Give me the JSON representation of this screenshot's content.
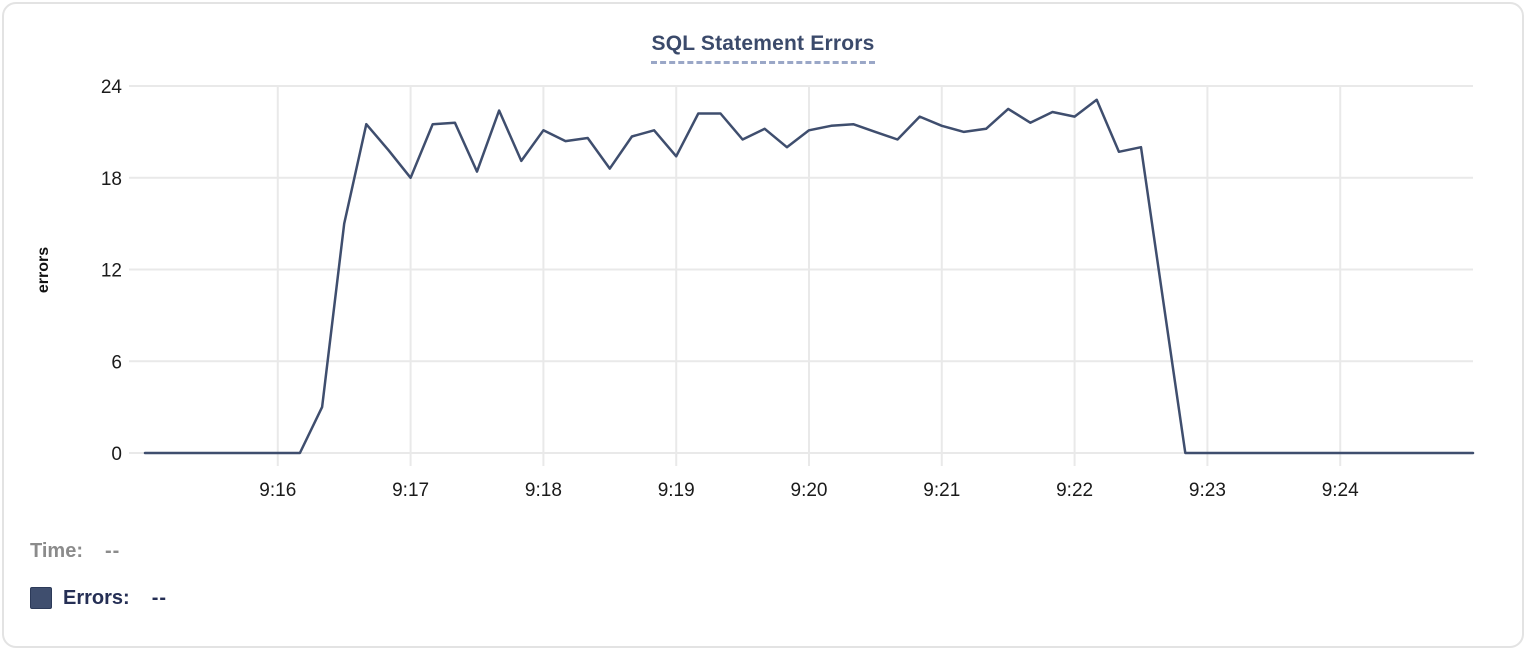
{
  "panel": {
    "background": "#ffffff",
    "border_color": "#e3e3e3"
  },
  "tooltip_readout": {
    "time_label": "Time:",
    "time_value": "--",
    "errors_label": "Errors:",
    "errors_value": "--"
  },
  "colors": {
    "grid": "#e9e9e9",
    "tick_text": "#1b1b1b",
    "axis_label_text": "#111111",
    "title": "#3b4a6b",
    "title_underline": "#9aa7c7",
    "time_readout_text": "#8b8b8b",
    "errors_readout_text": "#252f55",
    "series_line": "#3f4e6e"
  },
  "chart_data": {
    "type": "line",
    "title": "SQL Statement Errors",
    "xlabel": "",
    "ylabel": "errors",
    "x_start": "9:15:00",
    "x_end": "9:25:00",
    "x_step_seconds": 10,
    "x_tick_labels": [
      "9:16",
      "9:17",
      "9:18",
      "9:19",
      "9:20",
      "9:21",
      "9:22",
      "9:23",
      "9:24"
    ],
    "y_ticks": [
      0,
      6,
      12,
      18,
      24
    ],
    "ylim": [
      0,
      24
    ],
    "grid": true,
    "legend_position": "below-left",
    "series": [
      {
        "name": "Errors",
        "color": "#3f4e6e",
        "values": [
          0,
          0,
          0,
          0,
          0,
          0,
          0,
          0,
          3,
          15,
          21.5,
          19.8,
          18,
          21.5,
          21.6,
          18.4,
          22.4,
          19.1,
          21.1,
          20.4,
          20.6,
          18.6,
          20.7,
          21.1,
          19.4,
          22.2,
          22.2,
          20.5,
          21.2,
          20,
          21.1,
          21.4,
          21.5,
          21,
          20.5,
          22,
          21.4,
          21,
          21.2,
          22.5,
          21.6,
          22.3,
          22,
          23.1,
          19.7,
          20,
          10,
          0,
          0,
          0,
          0,
          0,
          0,
          0,
          0,
          0,
          0,
          0,
          0,
          0,
          0
        ]
      }
    ]
  }
}
